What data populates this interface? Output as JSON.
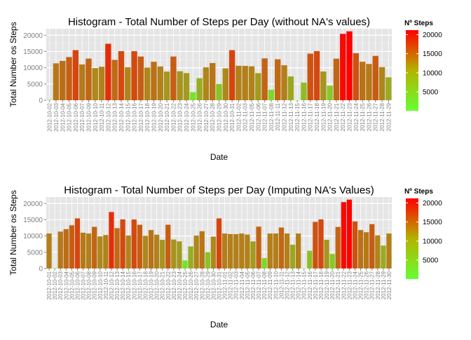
{
  "chart_data": [
    {
      "type": "bar",
      "title": "Histogram - Total Number of Steps per Day (without NA's values)",
      "xlabel": "Date",
      "ylabel": "Total Number os Steps",
      "ylim": [
        0,
        22000
      ],
      "yticks": [
        0,
        5000,
        10000,
        15000,
        20000
      ],
      "grid": true,
      "legend": {
        "title": "Nº Steps",
        "ticks": [
          5000,
          10000,
          15000,
          20000
        ],
        "position": "right"
      },
      "color_scale": {
        "low": "#66ff33",
        "high": "#ff0000",
        "min": 41,
        "max": 21194
      },
      "categories": [
        "2012-10-02",
        "2012-10-03",
        "2012-10-04",
        "2012-10-05",
        "2012-10-06",
        "2012-10-07",
        "2012-10-09",
        "2012-10-10",
        "2012-10-11",
        "2012-10-12",
        "2012-10-13",
        "2012-10-14",
        "2012-10-15",
        "2012-10-16",
        "2012-10-17",
        "2012-10-18",
        "2012-10-19",
        "2012-10-20",
        "2012-10-21",
        "2012-10-22",
        "2012-10-23",
        "2012-10-24",
        "2012-10-25",
        "2012-10-26",
        "2012-10-27",
        "2012-10-28",
        "2012-10-29",
        "2012-10-30",
        "2012-10-31",
        "2012-11-02",
        "2012-11-03",
        "2012-11-05",
        "2012-11-06",
        "2012-11-07",
        "2012-11-08",
        "2012-11-11",
        "2012-11-12",
        "2012-11-13",
        "2012-11-15",
        "2012-11-16",
        "2012-11-17",
        "2012-11-18",
        "2012-11-19",
        "2012-11-20",
        "2012-11-21",
        "2012-11-22",
        "2012-11-23",
        "2012-11-24",
        "2012-11-25",
        "2012-11-26",
        "2012-11-27",
        "2012-11-28",
        "2012-11-29"
      ],
      "tick_labels": [
        "2012-10-02",
        "2012-10-03",
        "2012-10-04",
        "2012-10-05",
        "2012-10-06",
        "2012-10-07",
        "2012-10-09",
        "2012-10-10",
        "2012-10-11",
        "2012-10-12",
        "2012-10-13",
        "2012-10-14",
        "2012-10-15",
        "2012-10-16",
        "2012-10-17",
        "2012-10-18",
        "2012-10-19",
        "2012-10-20",
        "2012-10-21",
        "2012-10-22",
        "2012-10-23",
        "2012-10-24",
        "2012-10-25",
        "2012-10-26",
        "2012-10-27",
        "2012-10-28",
        "2012-10-29",
        "2012-10-30",
        "2012-10-31",
        "2012-11-02",
        "2012-11-03",
        "2012-11-05",
        "2012-11-06",
        "2012-11-07",
        "2012-11-08",
        "2012-11-11",
        "2012-11-12",
        "2012-11-13",
        "2012-11-15",
        "2012-11-16",
        "2012-11-17",
        "2012-11-18",
        "2012-11-19",
        "2012-11-20",
        "2012-11-21",
        "2012-11-22",
        "2012-11-23",
        "2012-11-24",
        "2012-11-25",
        "2012-11-26",
        "2012-11-27",
        "2012-11-28",
        "2012-11-29"
      ],
      "values": [
        126,
        11352,
        12116,
        13294,
        15420,
        11015,
        12811,
        9900,
        10304,
        17382,
        12426,
        15098,
        10139,
        15084,
        13452,
        10056,
        11829,
        10395,
        8821,
        13460,
        8918,
        8355,
        2492,
        6778,
        10119,
        11458,
        5018,
        9819,
        15414,
        10600,
        10571,
        10439,
        8334,
        12883,
        3219,
        12608,
        10765,
        7336,
        41,
        5441,
        14339,
        15110,
        8841,
        4472,
        12787,
        20427,
        21194,
        14478,
        11834,
        11162,
        13646,
        10183,
        7047
      ]
    },
    {
      "type": "bar",
      "title": "Histogram - Total Number of Steps per Day (Imputing NA's Values)",
      "xlabel": "Date",
      "ylabel": "Total Number os Steps",
      "ylim": [
        0,
        22000
      ],
      "yticks": [
        0,
        5000,
        10000,
        15000,
        20000
      ],
      "grid": true,
      "legend": {
        "title": "Nº Steps",
        "ticks": [
          5000,
          10000,
          15000,
          20000
        ],
        "position": "right"
      },
      "color_scale": {
        "low": "#66ff33",
        "high": "#ff0000",
        "min": 41,
        "max": 21194
      },
      "categories": [
        "2012-10-01",
        "2012-10-02",
        "2012-10-03",
        "2012-10-04",
        "2012-10-05",
        "2012-10-06",
        "2012-10-07",
        "2012-10-08",
        "2012-10-09",
        "2012-10-10",
        "2012-10-11",
        "2012-10-12",
        "2012-10-13",
        "2012-10-14",
        "2012-10-15",
        "2012-10-16",
        "2012-10-17",
        "2012-10-18",
        "2012-10-19",
        "2012-10-20",
        "2012-10-21",
        "2012-10-22",
        "2012-10-23",
        "2012-10-24",
        "2012-10-25",
        "2012-10-26",
        "2012-10-27",
        "2012-10-28",
        "2012-10-29",
        "2012-10-30",
        "2012-10-31",
        "2012-11-01",
        "2012-11-02",
        "2012-11-03",
        "2012-11-04",
        "2012-11-05",
        "2012-11-06",
        "2012-11-07",
        "2012-11-08",
        "2012-11-09",
        "2012-11-10",
        "2012-11-11",
        "2012-11-12",
        "2012-11-13",
        "2012-11-14",
        "2012-11-15",
        "2012-11-16",
        "2012-11-17",
        "2012-11-18",
        "2012-11-19",
        "2012-11-20",
        "2012-11-21",
        "2012-11-22",
        "2012-11-23",
        "2012-11-24",
        "2012-11-25",
        "2012-11-26",
        "2012-11-27",
        "2012-11-28",
        "2012-11-29",
        "2012-11-30"
      ],
      "tick_labels": [
        "2012-10-01",
        "2012-10-02",
        "2012-10-03",
        "2012-10-04",
        "2012-10-05",
        "2012-10-06",
        "2012-10-07",
        "2012-10-08",
        "2012-10-09",
        "2012-10-10",
        "2012-10-11",
        "2012-10-12",
        "2012-10-13",
        "2012-10-14",
        "2012-10-15",
        "2012-10-16",
        "2012-10-17",
        "2012-10-18",
        "2012-10-19",
        "2012-10-20",
        "2012-10-21",
        "2012-10-22",
        "2012-10-23",
        "2012-10-24",
        "2012-10-25",
        "2012-10-26",
        "2012-10-27",
        "2012-10-28",
        "2012-10-29",
        "2012-10-30",
        "2012-10-31",
        "2012-11-01",
        "2012-11-02",
        "2012-11-03",
        "2012-11-04",
        "2012-11-05",
        "2012-11-06",
        "2012-11-07",
        "2012-11-08",
        "2012-11-09",
        "2012-11-10",
        "2012-11-11",
        "2012-11-12",
        "2012-11-13",
        "2012-11-14",
        "2012-11-15",
        "2012-11-16",
        "2012-11-17",
        "2012-11-18",
        "2012-11-19",
        "2012-11-20",
        "2012-11-21",
        "2012-11-22",
        "2012-11-23",
        "2012-11-24",
        "2012-11-25",
        "2012-11-26",
        "2012-11-27",
        "2012-11-28",
        "2012-11-29",
        "2012-11-30"
      ],
      "values": [
        10766,
        126,
        11352,
        12116,
        13294,
        15420,
        11015,
        10766,
        12811,
        9900,
        10304,
        17382,
        12426,
        15098,
        10139,
        15084,
        13452,
        10056,
        11829,
        10395,
        8821,
        13460,
        8918,
        8355,
        2492,
        6778,
        10119,
        11458,
        5018,
        9819,
        15414,
        10766,
        10600,
        10571,
        10766,
        10439,
        8334,
        12883,
        3219,
        10766,
        10766,
        12608,
        10765,
        7336,
        10766,
        41,
        5441,
        14339,
        15110,
        8841,
        4472,
        12787,
        20427,
        21194,
        14478,
        11834,
        11162,
        13646,
        10183,
        7047,
        10766
      ]
    }
  ]
}
